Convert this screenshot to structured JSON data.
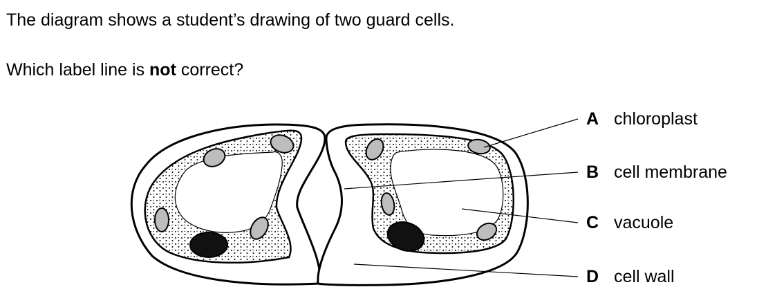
{
  "question": {
    "line1": "The diagram shows a student’s drawing of two guard cells.",
    "line2_prefix": "Which label line is ",
    "line2_bold": "not",
    "line2_suffix": " correct?"
  },
  "labels": [
    {
      "letter": "A",
      "text": "chloroplast"
    },
    {
      "letter": "B",
      "text": "cell membrane"
    },
    {
      "letter": "C",
      "text": "vacuole"
    },
    {
      "letter": "D",
      "text": "cell wall"
    }
  ],
  "colors": {
    "outline": "#000000",
    "chloroplast_fill": "#bdbdbd",
    "nucleus_fill": "#111111",
    "cytoplasm_dots": "#000000"
  }
}
